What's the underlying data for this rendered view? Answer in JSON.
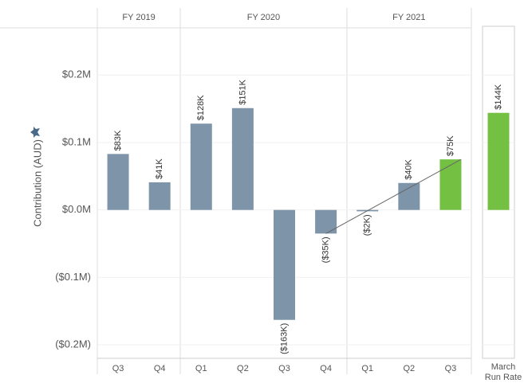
{
  "chart_data": {
    "type": "bar",
    "y_label": "Contribution (AUD)",
    "groups": [
      {
        "name": "FY 2019",
        "span": 2
      },
      {
        "name": "FY 2020",
        "span": 4
      },
      {
        "name": "FY 2021",
        "span": 3
      }
    ],
    "categories": [
      "Q3",
      "Q4",
      "Q1",
      "Q2",
      "Q3",
      "Q4",
      "Q1",
      "Q2",
      "Q3"
    ],
    "values": [
      83000,
      41000,
      128000,
      151000,
      -163000,
      -35000,
      -2000,
      40000,
      75000
    ],
    "value_labels": [
      "$83K",
      "$41K",
      "$128K",
      "$151K",
      "($163K)",
      "($35K)",
      "($2K)",
      "$40K",
      "$75K"
    ],
    "colors": [
      "#7e94a8",
      "#7e94a8",
      "#7e94a8",
      "#7e94a8",
      "#7e94a8",
      "#7e94a8",
      "#7e94a8",
      "#7e94a8",
      "#73c043"
    ],
    "run_rate": {
      "category": "March Run Rate",
      "value": 144000,
      "value_label": "$144K",
      "color": "#73c043"
    },
    "ylim": [
      -220000,
      270000
    ],
    "yticks": [
      {
        "value": -200000,
        "label": "($0.2M)"
      },
      {
        "value": -100000,
        "label": "($0.1M)"
      },
      {
        "value": 0,
        "label": "$0.0M"
      },
      {
        "value": 100000,
        "label": "$0.1M"
      },
      {
        "value": 200000,
        "label": "$0.2M"
      }
    ],
    "grid": true
  }
}
